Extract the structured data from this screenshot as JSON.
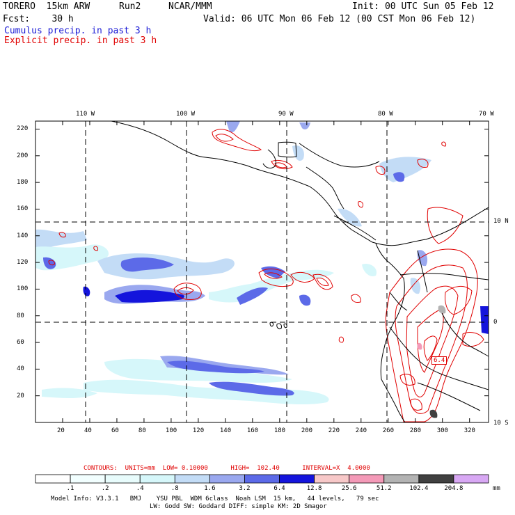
{
  "header": {
    "model": "TORERO  15km ARW",
    "run": "Run2",
    "org": "NCAR/MMM",
    "init": "Init: 00 UTC Sun 05 Feb 12",
    "fcst": "Fcst:    30 h",
    "valid": "Valid: 06 UTC Mon 06 Feb 12 (00 CST Mon 06 Feb 12)",
    "cumulus": "Cumulus precip. in past 3 h",
    "explicit": "Explicit precip. in past 3 h",
    "cumulus_color": "#1b1bd6",
    "explicit_color": "#e00000"
  },
  "map": {
    "top_lon_labels": [
      "110 W",
      "100 W",
      "90 W",
      "80 W",
      "70 W"
    ],
    "right_lat_labels": [
      "10 N",
      "0",
      "10 S"
    ],
    "left_ticks": [
      "220",
      "200",
      "180",
      "160",
      "140",
      "120",
      "100",
      "80",
      "60",
      "40",
      "20"
    ],
    "bottom_ticks": [
      "20",
      "40",
      "60",
      "80",
      "100",
      "120",
      "140",
      "160",
      "180",
      "200",
      "220",
      "240",
      "260",
      "280",
      "300",
      "320"
    ],
    "contour_label": "6.4",
    "x_range": [
      0,
      334
    ],
    "y_range": [
      0,
      226
    ]
  },
  "footer": {
    "contours_line": "CONTOURS:  UNITS=mm  LOW= 0.10000      HIGH=  102.40      INTERVAL=X  4.0000",
    "colorbar_labels": [
      ".1",
      ".2",
      ".4",
      ".8",
      "1.6",
      "3.2",
      "6.4",
      "12.8",
      "25.6",
      "51.2",
      "102.4",
      "204.8"
    ],
    "colorbar_units": "mm",
    "colorbar_colors": [
      "#ffffff",
      "#f2ffff",
      "#e8fcfc",
      "#d6f7fa",
      "#c3dcf6",
      "#9aa8ef",
      "#5c6ae8",
      "#1414dc",
      "#f7c8c8",
      "#f49ab8",
      "#b3b3b3",
      "#404040",
      "#d8a8f4"
    ],
    "model_info": "Model Info: V3.3.1   BMJ    YSU PBL  WDM 6class  Noah LSM  15 km,   44 levels,   79 sec",
    "model_info2": "LW: Godd SW: Goddard DIFF: simple KM: 2D Smagor"
  }
}
